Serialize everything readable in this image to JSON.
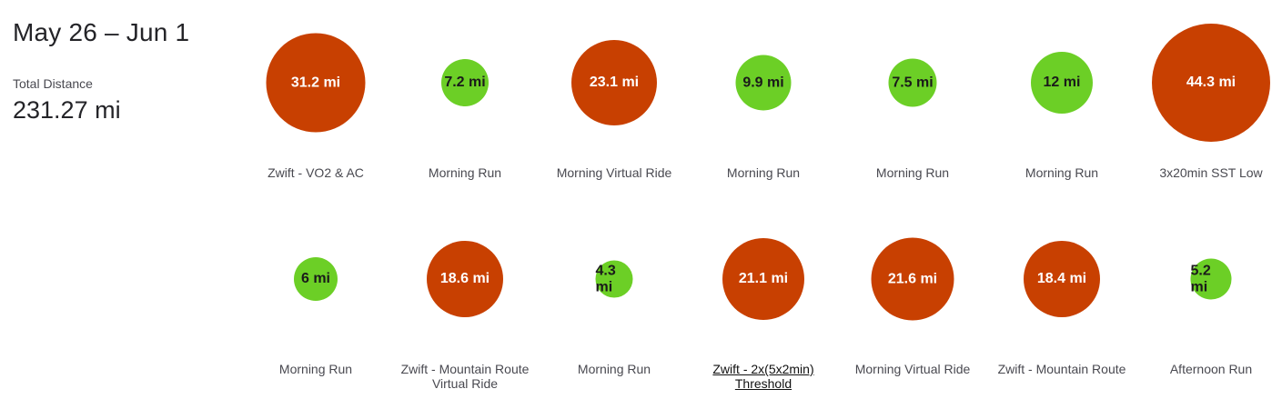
{
  "summary": {
    "date_range": "May 26 – Jun 1",
    "total_label": "Total Distance",
    "total_value": "231.27 mi"
  },
  "colors": {
    "ride": "#c84001",
    "run": "#6ccf26"
  },
  "activities": [
    {
      "distance": "31.2 mi",
      "miles": 31.2,
      "name": "Zwift - VO2 & AC",
      "type": "ride"
    },
    {
      "distance": "7.2 mi",
      "miles": 7.2,
      "name": "Morning Run",
      "type": "run"
    },
    {
      "distance": "23.1 mi",
      "miles": 23.1,
      "name": "Morning Virtual Ride",
      "type": "ride"
    },
    {
      "distance": "9.9 mi",
      "miles": 9.9,
      "name": "Morning Run",
      "type": "run"
    },
    {
      "distance": "7.5 mi",
      "miles": 7.5,
      "name": "Morning Run",
      "type": "run"
    },
    {
      "distance": "12 mi",
      "miles": 12,
      "name": "Morning Run",
      "type": "run"
    },
    {
      "distance": "44.3 mi",
      "miles": 44.3,
      "name": "3x20min SST Low",
      "type": "ride"
    },
    {
      "distance": "6 mi",
      "miles": 6,
      "name": "Morning Run",
      "type": "run"
    },
    {
      "distance": "18.6 mi",
      "miles": 18.6,
      "name": "Zwift - Mountain Route Virtual Ride",
      "type": "ride"
    },
    {
      "distance": "4.3 mi",
      "miles": 4.3,
      "name": "Morning Run",
      "type": "run"
    },
    {
      "distance": "21.1 mi",
      "miles": 21.1,
      "name": "Zwift - 2x(5x2min) Threshold",
      "type": "ride",
      "hovered": true
    },
    {
      "distance": "21.6 mi",
      "miles": 21.6,
      "name": "Morning Virtual Ride",
      "type": "ride"
    },
    {
      "distance": "18.4 mi",
      "miles": 18.4,
      "name": "Zwift - Mountain Route",
      "type": "ride"
    },
    {
      "distance": "5.2 mi",
      "miles": 5.2,
      "name": "Afternoon Run",
      "type": "run"
    }
  ]
}
